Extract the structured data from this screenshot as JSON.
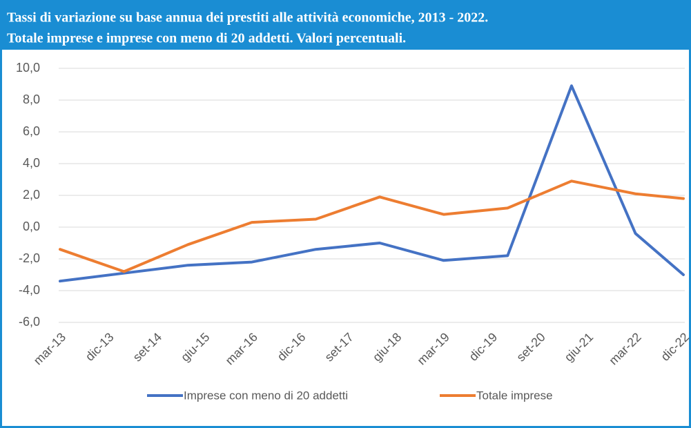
{
  "chart_data": {
    "type": "line",
    "title": "Tassi di variazione su base annua dei prestiti alle attività economiche, 2013 - 2022.",
    "subtitle": "Totale imprese e imprese con meno di 20 addetti. Valori percentuali.",
    "xlim": [
      0,
      39
    ],
    "xticks": [
      {
        "value": 0,
        "label": "mar-13"
      },
      {
        "value": 3,
        "label": "dic-13"
      },
      {
        "value": 6,
        "label": "set-14"
      },
      {
        "value": 9,
        "label": "giu-15"
      },
      {
        "value": 12,
        "label": "mar-16"
      },
      {
        "value": 15,
        "label": "dic-16"
      },
      {
        "value": 18,
        "label": "set-17"
      },
      {
        "value": 21,
        "label": "giu-18"
      },
      {
        "value": 24,
        "label": "mar-19"
      },
      {
        "value": 27,
        "label": "dic-19"
      },
      {
        "value": 30,
        "label": "set-20"
      },
      {
        "value": 33,
        "label": "giu-21"
      },
      {
        "value": 36,
        "label": "mar-22"
      },
      {
        "value": 39,
        "label": "dic-22"
      }
    ],
    "x": [
      0,
      4,
      8,
      12,
      16,
      20,
      24,
      28,
      32,
      36,
      39
    ],
    "series": [
      {
        "name": "Imprese con meno di 20 addetti",
        "color": "#4472c4",
        "values": [
          -3.4,
          -2.9,
          -2.4,
          -2.2,
          -1.4,
          -1.0,
          -2.1,
          -1.8,
          8.9,
          -0.4,
          -3.0
        ]
      },
      {
        "name": "Totale imprese",
        "color": "#ed7d31",
        "values": [
          -1.4,
          -2.8,
          -1.1,
          0.3,
          0.5,
          1.9,
          0.8,
          1.2,
          2.9,
          2.1,
          1.8
        ]
      }
    ],
    "ylim": [
      -6,
      10
    ],
    "yticks": [
      {
        "value": -6,
        "label": "-6,0"
      },
      {
        "value": -4,
        "label": "-4,0"
      },
      {
        "value": -2,
        "label": "-2,0"
      },
      {
        "value": 0,
        "label": "0,0"
      },
      {
        "value": 2,
        "label": "2,0"
      },
      {
        "value": 4,
        "label": "4,0"
      },
      {
        "value": 6,
        "label": "6,0"
      },
      {
        "value": 8,
        "label": "8,0"
      },
      {
        "value": 10,
        "label": "10,0"
      }
    ],
    "grid": true,
    "legend": "bottom"
  }
}
